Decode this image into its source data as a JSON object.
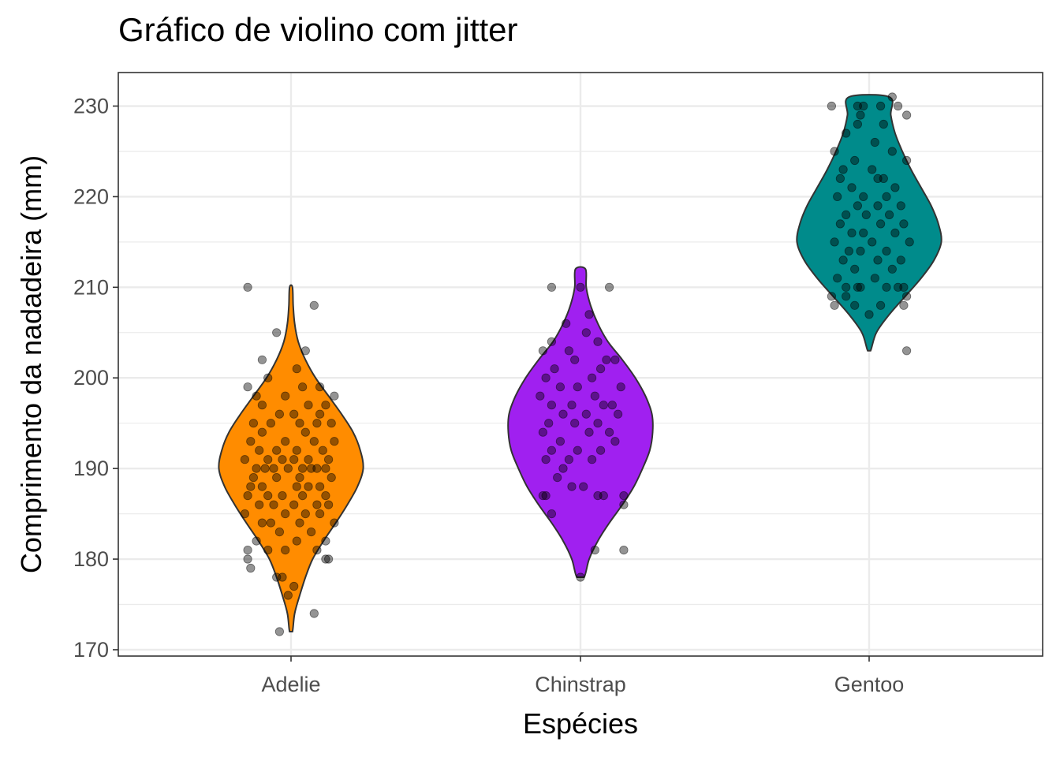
{
  "chart_data": {
    "type": "violin",
    "title": "Gráfico de violino com jitter",
    "xlabel": "Espécies",
    "ylabel": "Comprimento da nadadeira (mm)",
    "ylim": [
      169.3,
      233.7
    ],
    "yticks": [
      170,
      180,
      190,
      200,
      210,
      220,
      230
    ],
    "grid": true,
    "categories": [
      "Adelie",
      "Chinstrap",
      "Gentoo"
    ],
    "colors": {
      "Adelie": "#ff8c00",
      "Chinstrap": "#a020f0",
      "Gentoo": "#008b8b"
    },
    "violins": [
      {
        "category": "Adelie",
        "min": 172,
        "max": 210,
        "density": [
          [
            172,
            0.02
          ],
          [
            174,
            0.05
          ],
          [
            176,
            0.12
          ],
          [
            178,
            0.2
          ],
          [
            180,
            0.3
          ],
          [
            182,
            0.45
          ],
          [
            184,
            0.62
          ],
          [
            186,
            0.78
          ],
          [
            188,
            0.92
          ],
          [
            190,
            1.0
          ],
          [
            192,
            0.96
          ],
          [
            194,
            0.86
          ],
          [
            196,
            0.7
          ],
          [
            198,
            0.52
          ],
          [
            200,
            0.34
          ],
          [
            202,
            0.2
          ],
          [
            204,
            0.1
          ],
          [
            206,
            0.05
          ],
          [
            208,
            0.03
          ],
          [
            210,
            0.02
          ]
        ]
      },
      {
        "category": "Chinstrap",
        "min": 178,
        "max": 212,
        "density": [
          [
            178,
            0.05
          ],
          [
            180,
            0.12
          ],
          [
            182,
            0.24
          ],
          [
            184,
            0.4
          ],
          [
            186,
            0.58
          ],
          [
            188,
            0.74
          ],
          [
            190,
            0.86
          ],
          [
            192,
            0.96
          ],
          [
            194,
            1.0
          ],
          [
            196,
            0.99
          ],
          [
            198,
            0.9
          ],
          [
            200,
            0.76
          ],
          [
            202,
            0.58
          ],
          [
            204,
            0.38
          ],
          [
            206,
            0.24
          ],
          [
            208,
            0.14
          ],
          [
            210,
            0.08
          ],
          [
            212,
            0.07
          ]
        ]
      },
      {
        "category": "Gentoo",
        "min": 203,
        "max": 231,
        "density": [
          [
            203,
            0.02
          ],
          [
            205,
            0.1
          ],
          [
            207,
            0.28
          ],
          [
            209,
            0.5
          ],
          [
            211,
            0.72
          ],
          [
            213,
            0.9
          ],
          [
            215,
            1.0
          ],
          [
            217,
            0.96
          ],
          [
            219,
            0.86
          ],
          [
            221,
            0.72
          ],
          [
            223,
            0.58
          ],
          [
            225,
            0.46
          ],
          [
            227,
            0.36
          ],
          [
            229,
            0.3
          ],
          [
            231,
            0.28
          ]
        ]
      }
    ],
    "points": [
      {
        "category": "Adelie",
        "values": [
          [
            -0.15,
            210
          ],
          [
            -0.05,
            205
          ],
          [
            0.08,
            208
          ],
          [
            -0.1,
            202
          ],
          [
            0.05,
            203
          ],
          [
            0.02,
            201
          ],
          [
            -0.08,
            200
          ],
          [
            0.1,
            199
          ],
          [
            -0.15,
            199
          ],
          [
            0.04,
            199
          ],
          [
            -0.02,
            198
          ],
          [
            0.15,
            198
          ],
          [
            -0.12,
            198
          ],
          [
            0.06,
            197
          ],
          [
            -0.1,
            197
          ],
          [
            0.12,
            197
          ],
          [
            -0.04,
            196
          ],
          [
            0.1,
            196
          ],
          [
            0.01,
            196
          ],
          [
            -0.13,
            195
          ],
          [
            0.09,
            195
          ],
          [
            -0.07,
            195
          ],
          [
            0.03,
            195
          ],
          [
            0.14,
            195
          ],
          [
            -0.1,
            194
          ],
          [
            0.05,
            194
          ],
          [
            -0.02,
            193
          ],
          [
            0.15,
            193
          ],
          [
            -0.14,
            193
          ],
          [
            0.08,
            193
          ],
          [
            -0.05,
            192
          ],
          [
            0.02,
            192
          ],
          [
            0.11,
            192
          ],
          [
            -0.11,
            192
          ],
          [
            0.06,
            191
          ],
          [
            -0.08,
            191
          ],
          [
            0.13,
            191
          ],
          [
            -0.03,
            191
          ],
          [
            0.01,
            191
          ],
          [
            -0.16,
            191
          ],
          [
            0.09,
            190
          ],
          [
            -0.06,
            190
          ],
          [
            0.04,
            190
          ],
          [
            -0.12,
            190
          ],
          [
            0.12,
            190
          ],
          [
            -0.01,
            190
          ],
          [
            0.07,
            190
          ],
          [
            -0.09,
            190
          ],
          [
            0.14,
            189
          ],
          [
            -0.13,
            189
          ],
          [
            0.03,
            189
          ],
          [
            -0.05,
            189
          ],
          [
            0.1,
            188
          ],
          [
            -0.1,
            188
          ],
          [
            0.02,
            188
          ],
          [
            -0.14,
            188
          ],
          [
            0.06,
            188
          ],
          [
            -0.03,
            187
          ],
          [
            0.12,
            187
          ],
          [
            -0.08,
            187
          ],
          [
            0.04,
            187
          ],
          [
            -0.15,
            187
          ],
          [
            0.09,
            186
          ],
          [
            -0.06,
            186
          ],
          [
            0.01,
            186
          ],
          [
            0.13,
            186
          ],
          [
            -0.11,
            186
          ],
          [
            0.05,
            185
          ],
          [
            -0.02,
            185
          ],
          [
            -0.16,
            185
          ],
          [
            0.1,
            185
          ],
          [
            -0.07,
            184
          ],
          [
            0.03,
            184
          ],
          [
            0.15,
            184
          ],
          [
            -0.1,
            184
          ],
          [
            0.07,
            183
          ],
          [
            -0.04,
            183
          ],
          [
            0.12,
            182
          ],
          [
            -0.12,
            182
          ],
          [
            0.02,
            182
          ],
          [
            -0.08,
            181
          ],
          [
            0.09,
            181
          ],
          [
            -0.15,
            181
          ],
          [
            0.12,
            180
          ],
          [
            0.13,
            180
          ],
          [
            -0.15,
            180
          ],
          [
            -0.02,
            181
          ],
          [
            -0.14,
            179
          ],
          [
            -0.05,
            178
          ],
          [
            -0.03,
            178
          ],
          [
            0.01,
            177
          ],
          [
            -0.01,
            176
          ],
          [
            0.08,
            174
          ],
          [
            -0.04,
            172
          ]
        ]
      },
      {
        "category": "Chinstrap",
        "values": [
          [
            -0.1,
            210
          ],
          [
            0,
            210
          ],
          [
            0.1,
            210
          ],
          [
            0.03,
            207
          ],
          [
            -0.05,
            206
          ],
          [
            0.02,
            205
          ],
          [
            -0.1,
            204
          ],
          [
            0.06,
            204
          ],
          [
            -0.04,
            203
          ],
          [
            0.12,
            202
          ],
          [
            -0.13,
            203
          ],
          [
            0.09,
            202
          ],
          [
            -0.02,
            202
          ],
          [
            0.07,
            201
          ],
          [
            -0.09,
            201
          ],
          [
            0.04,
            200
          ],
          [
            -0.12,
            200
          ],
          [
            -0.01,
            199
          ],
          [
            0.14,
            199
          ],
          [
            -0.07,
            199
          ],
          [
            0.05,
            198
          ],
          [
            -0.14,
            198
          ],
          [
            0.11,
            197
          ],
          [
            -0.03,
            197
          ],
          [
            0.08,
            197
          ],
          [
            -0.1,
            197
          ],
          [
            0.02,
            196
          ],
          [
            -0.06,
            196
          ],
          [
            0.13,
            196
          ],
          [
            -0.11,
            195
          ],
          [
            0.06,
            195
          ],
          [
            -0.02,
            195
          ],
          [
            0.1,
            194
          ],
          [
            -0.13,
            194
          ],
          [
            0.03,
            194
          ],
          [
            -0.07,
            193
          ],
          [
            0.12,
            193
          ],
          [
            -0.01,
            192
          ],
          [
            0.07,
            192
          ],
          [
            -0.1,
            192
          ],
          [
            -0.04,
            191
          ],
          [
            0.04,
            191
          ],
          [
            -0.12,
            191
          ],
          [
            -0.06,
            190
          ],
          [
            -0.08,
            189
          ],
          [
            -0.03,
            188
          ],
          [
            0.01,
            188
          ],
          [
            0.06,
            187
          ],
          [
            0.08,
            187
          ],
          [
            -0.13,
            187
          ],
          [
            0.15,
            187
          ],
          [
            -0.12,
            187
          ],
          [
            0.15,
            186
          ],
          [
            -0.1,
            185
          ],
          [
            0.05,
            181
          ],
          [
            0.15,
            181
          ],
          [
            0,
            178
          ]
        ]
      },
      {
        "category": "Gentoo",
        "values": [
          [
            -0.13,
            230
          ],
          [
            -0.02,
            230
          ],
          [
            0.08,
            231
          ],
          [
            0.1,
            230
          ],
          [
            -0.04,
            230
          ],
          [
            0.04,
            230
          ],
          [
            0.13,
            229
          ],
          [
            -0.03,
            229
          ],
          [
            -0.04,
            228
          ],
          [
            0.05,
            228
          ],
          [
            -0.08,
            227
          ],
          [
            0.02,
            226
          ],
          [
            -0.12,
            225
          ],
          [
            0.08,
            225
          ],
          [
            -0.05,
            224
          ],
          [
            0.13,
            224
          ],
          [
            -0.09,
            223
          ],
          [
            0.01,
            223
          ],
          [
            0.05,
            222
          ],
          [
            -0.1,
            222
          ],
          [
            0.03,
            222
          ],
          [
            -0.06,
            221
          ],
          [
            0.09,
            221
          ],
          [
            -0.02,
            220
          ],
          [
            0.06,
            220
          ],
          [
            -0.11,
            220
          ],
          [
            0.11,
            219
          ],
          [
            -0.04,
            219
          ],
          [
            0.03,
            219
          ],
          [
            -0.08,
            218
          ],
          [
            0.07,
            218
          ],
          [
            -0.01,
            218
          ],
          [
            0.12,
            217
          ],
          [
            -0.1,
            217
          ],
          [
            0.04,
            217
          ],
          [
            -0.06,
            216
          ],
          [
            0.09,
            216
          ],
          [
            -0.02,
            216
          ],
          [
            0.14,
            215
          ],
          [
            -0.12,
            215
          ],
          [
            0.01,
            215
          ],
          [
            -0.07,
            214
          ],
          [
            0.06,
            214
          ],
          [
            -0.03,
            214
          ],
          [
            0.11,
            213
          ],
          [
            -0.09,
            213
          ],
          [
            0.03,
            213
          ],
          [
            -0.05,
            212
          ],
          [
            0.08,
            212
          ],
          [
            -0.11,
            211
          ],
          [
            0.02,
            211
          ],
          [
            -0.04,
            210
          ],
          [
            0.06,
            210
          ],
          [
            0.12,
            210
          ],
          [
            -0.08,
            210
          ],
          [
            0.1,
            210
          ],
          [
            -0.03,
            210
          ],
          [
            -0.13,
            209
          ],
          [
            0.13,
            209
          ],
          [
            -0.05,
            208
          ],
          [
            0.04,
            208
          ],
          [
            -0.12,
            208
          ],
          [
            0.12,
            208
          ],
          [
            0,
            207
          ],
          [
            -0.08,
            209
          ],
          [
            0.13,
            203
          ]
        ]
      }
    ]
  }
}
